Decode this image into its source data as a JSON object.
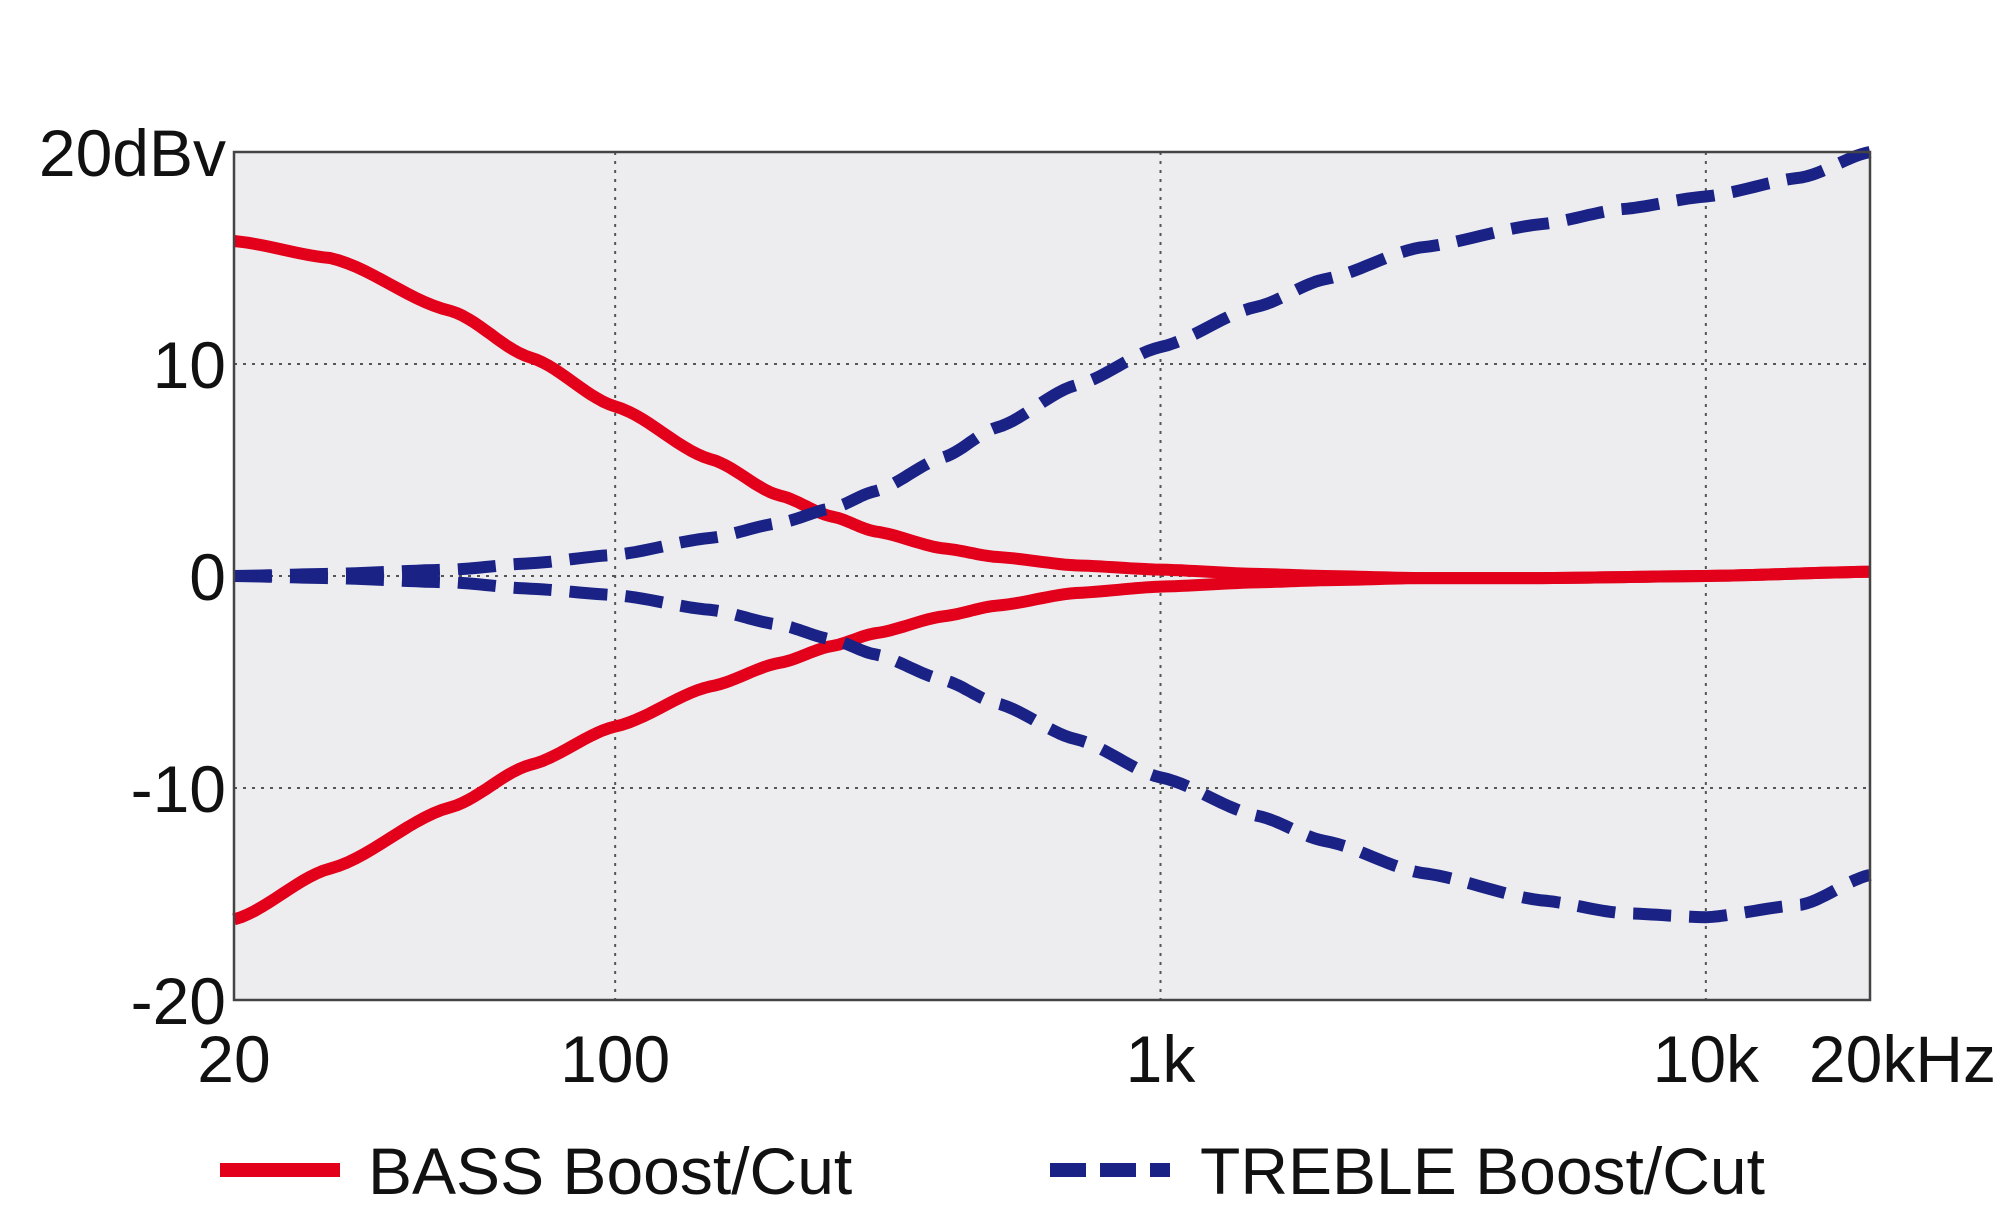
{
  "chart_data": {
    "type": "line",
    "x_scale": "log",
    "xlim": [
      20,
      20000
    ],
    "ylim": [
      -20,
      20
    ],
    "grid": true,
    "x_ticks": [
      20,
      100,
      1000,
      10000,
      20000
    ],
    "x_tick_labels": [
      "20",
      "100",
      "1k",
      "10k",
      "20kHz"
    ],
    "y_ticks": [
      20,
      10,
      0,
      -10,
      -20
    ],
    "y_tick_labels": [
      "20dBv",
      "10",
      "0",
      "-10",
      "-20"
    ],
    "legend_position": "bottom",
    "series": [
      {
        "name": "BASS Boost/Cut",
        "style": "solid",
        "color": "#e3001b",
        "curves": [
          {
            "x": [
              20,
              30,
              50,
              70,
              100,
              150,
              200,
              250,
              300,
              400,
              500,
              700,
              1000,
              1500,
              2000,
              3000,
              5000,
              10000,
              20000
            ],
            "y": [
              15.8,
              15.0,
              12.5,
              10.3,
              8.0,
              5.5,
              3.8,
              2.8,
              2.1,
              1.3,
              0.9,
              0.5,
              0.3,
              0.1,
              0.0,
              -0.1,
              -0.1,
              0.0,
              0.2
            ]
          },
          {
            "x": [
              20,
              30,
              50,
              70,
              100,
              150,
              200,
              250,
              300,
              400,
              500,
              700,
              1000,
              1500,
              2000,
              3000,
              5000,
              10000,
              20000
            ],
            "y": [
              -16.2,
              -13.8,
              -10.9,
              -8.9,
              -7.1,
              -5.2,
              -4.1,
              -3.3,
              -2.7,
              -1.9,
              -1.4,
              -0.8,
              -0.5,
              -0.3,
              -0.2,
              -0.1,
              -0.1,
              0.0,
              0.2
            ]
          }
        ]
      },
      {
        "name": "TREBLE Boost/Cut",
        "style": "dashed",
        "color": "#1a2286",
        "curves": [
          {
            "x": [
              20,
              30,
              50,
              70,
              100,
              150,
              200,
              250,
              300,
              400,
              500,
              700,
              1000,
              1500,
              2000,
              3000,
              5000,
              7000,
              10000,
              15000,
              20000
            ],
            "y": [
              0.0,
              0.1,
              0.3,
              0.6,
              1.0,
              1.8,
              2.5,
              3.2,
              4.0,
              5.6,
              7.0,
              9.0,
              10.8,
              12.7,
              14.0,
              15.5,
              16.6,
              17.3,
              17.9,
              18.8,
              20.0
            ]
          },
          {
            "x": [
              20,
              30,
              50,
              70,
              100,
              150,
              200,
              250,
              300,
              400,
              500,
              700,
              1000,
              1500,
              2000,
              3000,
              5000,
              7000,
              10000,
              15000,
              20000
            ],
            "y": [
              0.0,
              -0.1,
              -0.3,
              -0.6,
              -0.9,
              -1.6,
              -2.3,
              -3.0,
              -3.7,
              -4.9,
              -6.0,
              -7.7,
              -9.5,
              -11.3,
              -12.5,
              -14.0,
              -15.3,
              -15.9,
              -16.1,
              -15.5,
              -14.1
            ]
          }
        ]
      }
    ]
  }
}
